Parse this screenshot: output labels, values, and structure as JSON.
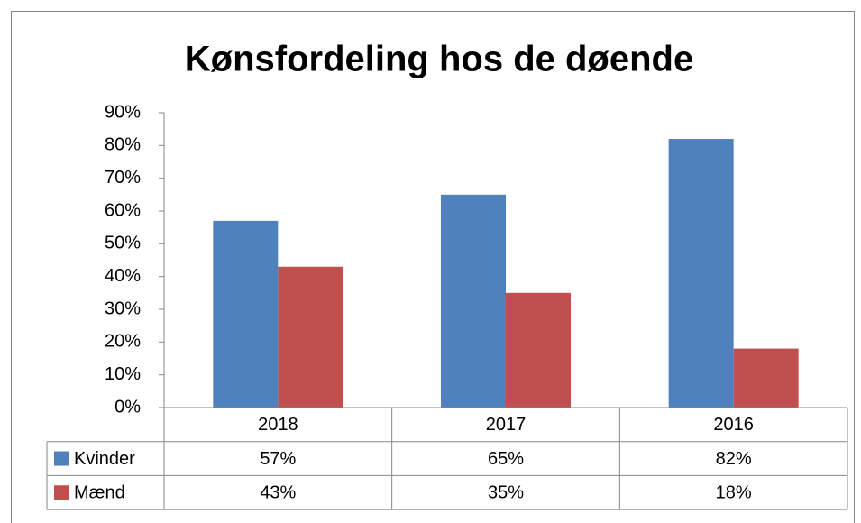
{
  "chart_data": {
    "type": "bar",
    "title": "Kønsfordeling hos de døende",
    "categories": [
      "2018",
      "2017",
      "2016"
    ],
    "series": [
      {
        "name": "Kvinder",
        "color": "#4f81bd",
        "values": [
          57,
          65,
          82
        ],
        "value_labels": [
          "57%",
          "65%",
          "82%"
        ]
      },
      {
        "name": "Mænd",
        "color": "#c0504d",
        "values": [
          43,
          35,
          18
        ],
        "value_labels": [
          "43%",
          "35%",
          "18%"
        ]
      }
    ],
    "ylim": [
      0,
      90
    ],
    "yticks": [
      {
        "value": 0,
        "label": "0%"
      },
      {
        "value": 10,
        "label": "10%"
      },
      {
        "value": 20,
        "label": "20%"
      },
      {
        "value": 30,
        "label": "30%"
      },
      {
        "value": 40,
        "label": "40%"
      },
      {
        "value": 50,
        "label": "50%"
      },
      {
        "value": 60,
        "label": "60%"
      },
      {
        "value": 70,
        "label": "70%"
      },
      {
        "value": 80,
        "label": "80%"
      },
      {
        "value": 90,
        "label": "90%"
      }
    ],
    "grid": false
  }
}
